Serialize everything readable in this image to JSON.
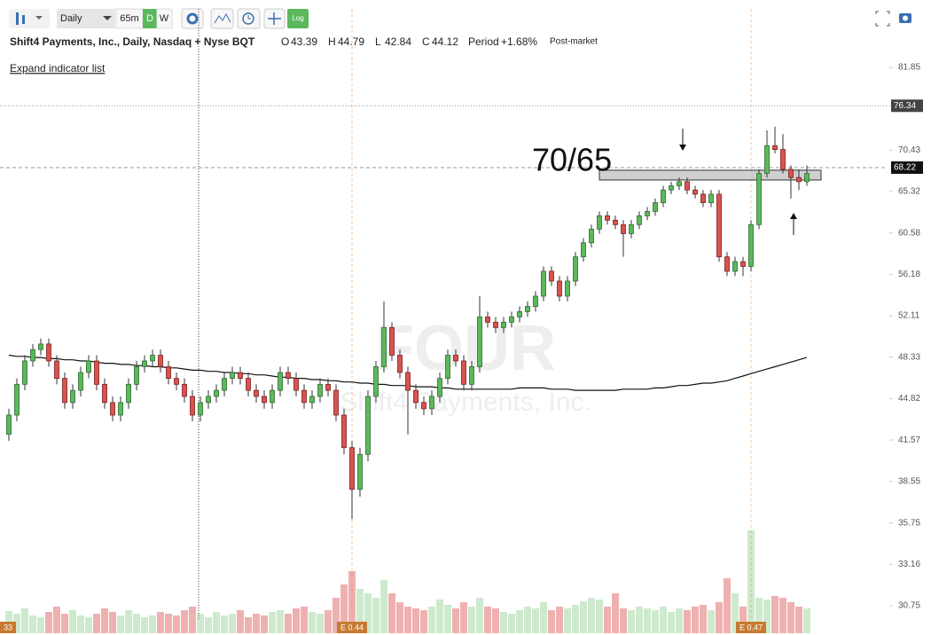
{
  "toolbar": {
    "interval": "Daily",
    "timeframe": "65m",
    "period_buttons": [
      "D",
      "W"
    ],
    "log_button": "Log"
  },
  "chart_data": {
    "type": "candlestick",
    "title": "Shift4 Payments, Inc., Daily, Nasdaq + Nyse BQT",
    "ohlc_legend": [
      {
        "label": "O",
        "value": 43.39
      },
      {
        "label": "H",
        "value": 44.79
      },
      {
        "label": "L",
        "value": 42.84
      },
      {
        "label": "C",
        "value": 44.12
      }
    ],
    "period": {
      "label": "Period",
      "value": 1.68,
      "value_label": "+1.68%"
    },
    "session": "Post-market",
    "expand_link": "Expand indicator list",
    "watermark": {
      "symbol": "FOUR",
      "name": "Shift4 Payments, Inc."
    },
    "log_scale": true,
    "ylim": [
      29.16,
      91.05
    ],
    "yticks": [
      81.85,
      76.34,
      70.43,
      65.32,
      60.58,
      56.18,
      52.11,
      48.33,
      44.82,
      41.57,
      38.55,
      35.75,
      33.16,
      30.75
    ],
    "marker_line": 76.34,
    "last_price": 68.22,
    "up_color": "#5cb85c",
    "down_color": "#d9534f",
    "ohlc": [
      [
        42,
        44,
        41.5,
        43.5
      ],
      [
        43.5,
        46.5,
        43,
        46
      ],
      [
        46,
        48.5,
        45.5,
        48
      ],
      [
        48,
        49.5,
        47.5,
        49
      ],
      [
        49,
        50,
        48.5,
        49.5
      ],
      [
        49.5,
        50,
        47.5,
        48
      ],
      [
        48,
        48.5,
        46,
        46.5
      ],
      [
        46.5,
        47,
        44,
        44.5
      ],
      [
        44.5,
        46,
        44,
        45.5
      ],
      [
        45.5,
        47.5,
        45,
        47
      ],
      [
        47,
        48.5,
        46.5,
        48
      ],
      [
        48,
        48.5,
        45.5,
        46
      ],
      [
        46,
        46.5,
        44,
        44.5
      ],
      [
        44.5,
        45,
        43,
        43.5
      ],
      [
        43.5,
        45,
        43,
        44.5
      ],
      [
        44.5,
        46.5,
        44,
        46
      ],
      [
        46,
        48,
        45.5,
        47.5
      ],
      [
        47.5,
        48.5,
        47,
        48
      ],
      [
        48,
        49,
        47.5,
        48.5
      ],
      [
        48.5,
        49,
        47,
        47.5
      ],
      [
        47.5,
        48,
        46,
        46.5
      ],
      [
        46.5,
        47,
        45.5,
        46
      ],
      [
        46,
        46.5,
        44.5,
        45
      ],
      [
        45,
        45.5,
        43,
        43.5
      ],
      [
        43.5,
        45,
        43,
        44.5
      ],
      [
        44.5,
        45.5,
        44,
        45
      ],
      [
        45,
        46,
        44.5,
        45.5
      ],
      [
        45.5,
        47,
        45,
        46.5
      ],
      [
        46.5,
        47.5,
        46,
        47
      ],
      [
        47,
        47.5,
        46,
        46.5
      ],
      [
        46.5,
        47,
        45,
        45.5
      ],
      [
        45.5,
        46,
        44.5,
        45
      ],
      [
        45,
        45.5,
        44,
        44.5
      ],
      [
        44.5,
        46,
        44,
        45.5
      ],
      [
        45.5,
        47.5,
        45,
        47
      ],
      [
        47,
        47.5,
        46,
        46.5
      ],
      [
        46.5,
        47,
        45,
        45.5
      ],
      [
        45.5,
        46,
        44,
        44.5
      ],
      [
        44.5,
        45.5,
        44,
        45
      ],
      [
        45,
        46.5,
        44.5,
        46
      ],
      [
        46,
        46.5,
        45,
        45.5
      ],
      [
        45.5,
        46,
        43,
        43.5
      ],
      [
        43.5,
        44,
        40.5,
        41
      ],
      [
        41,
        41.5,
        36,
        38
      ],
      [
        38,
        41,
        37.5,
        40.5
      ],
      [
        40.5,
        45.5,
        40,
        45
      ],
      [
        45,
        48,
        44.5,
        47.5
      ],
      [
        47.5,
        53.5,
        47,
        51
      ],
      [
        51,
        51.5,
        48,
        48.5
      ],
      [
        48.5,
        49,
        46.5,
        47
      ],
      [
        47,
        47.5,
        42,
        45.5
      ],
      [
        45.5,
        46,
        44,
        44.5
      ],
      [
        44.5,
        45,
        43.5,
        44
      ],
      [
        44,
        45.5,
        43.5,
        45
      ],
      [
        45,
        47,
        44.5,
        46.5
      ],
      [
        46.5,
        49,
        46,
        48.5
      ],
      [
        48.5,
        49,
        47.5,
        48
      ],
      [
        48,
        48.5,
        45.5,
        46
      ],
      [
        46,
        48,
        45.5,
        47.5
      ],
      [
        47.5,
        54,
        47,
        52
      ],
      [
        52,
        52.5,
        51,
        51.5
      ],
      [
        51.5,
        52,
        50.5,
        51
      ],
      [
        51,
        52,
        50.5,
        51.5
      ],
      [
        51.5,
        52.5,
        51,
        52
      ],
      [
        52,
        53,
        51.5,
        52.5
      ],
      [
        52.5,
        53.5,
        52,
        53
      ],
      [
        53,
        54.5,
        52.5,
        54
      ],
      [
        54,
        57,
        53.5,
        56.5
      ],
      [
        56.5,
        57,
        55,
        55.5
      ],
      [
        55.5,
        56,
        53.5,
        54
      ],
      [
        54,
        56,
        53.5,
        55.5
      ],
      [
        55.5,
        58.5,
        55,
        58
      ],
      [
        58,
        60,
        57.5,
        59.5
      ],
      [
        59.5,
        61.5,
        59,
        61
      ],
      [
        61,
        63,
        60.5,
        62.5
      ],
      [
        62.5,
        63,
        61.5,
        62
      ],
      [
        62,
        62.5,
        61,
        61.5
      ],
      [
        61.5,
        62,
        58,
        60.5
      ],
      [
        60.5,
        62,
        60,
        61.5
      ],
      [
        61.5,
        63,
        61,
        62.5
      ],
      [
        62.5,
        63.5,
        62,
        63
      ],
      [
        63,
        64.5,
        62.5,
        64
      ],
      [
        64,
        66,
        63.5,
        65.5
      ],
      [
        65.5,
        66.5,
        65,
        66
      ],
      [
        66,
        67,
        65.5,
        66.5
      ],
      [
        66.5,
        67,
        65,
        65.5
      ],
      [
        65.5,
        66,
        64.5,
        65
      ],
      [
        65,
        65.5,
        63.5,
        64
      ],
      [
        64,
        65.5,
        63.5,
        65
      ],
      [
        65,
        65.5,
        57.5,
        58
      ],
      [
        58,
        58.5,
        56,
        56.5
      ],
      [
        56.5,
        58,
        56,
        57.5
      ],
      [
        57.5,
        58,
        56,
        57
      ],
      [
        57,
        62,
        56.5,
        61.5
      ],
      [
        61.5,
        68,
        61,
        67.5
      ],
      [
        67.5,
        73,
        67,
        71
      ],
      [
        71,
        73.5,
        70,
        70.5
      ],
      [
        70.5,
        72.5,
        67.5,
        68
      ],
      [
        68,
        68.5,
        64.5,
        67
      ],
      [
        67,
        68,
        65.5,
        66.5
      ],
      [
        66.5,
        68.5,
        66,
        67.5
      ]
    ],
    "ma": {
      "color": "#111111",
      "values": [
        48.5,
        48.4,
        48.4,
        48.3,
        48.3,
        48.2,
        48.2,
        48.1,
        48.1,
        48.0,
        48.0,
        47.9,
        47.8,
        47.8,
        47.7,
        47.7,
        47.6,
        47.6,
        47.5,
        47.5,
        47.4,
        47.4,
        47.3,
        47.2,
        47.2,
        47.1,
        47.1,
        47.0,
        47.0,
        46.9,
        46.9,
        46.8,
        46.8,
        46.7,
        46.6,
        46.6,
        46.5,
        46.5,
        46.4,
        46.4,
        46.3,
        46.3,
        46.2,
        46.2,
        46.1,
        46.1,
        46.0,
        46.0,
        45.9,
        45.9,
        45.9,
        45.8,
        45.8,
        45.8,
        45.7,
        45.7,
        45.6,
        45.6,
        45.6,
        45.6,
        45.6,
        45.6,
        45.6,
        45.6,
        45.7,
        45.7,
        45.7,
        45.7,
        45.6,
        45.6,
        45.6,
        45.5,
        45.5,
        45.5,
        45.5,
        45.5,
        45.5,
        45.6,
        45.6,
        45.6,
        45.6,
        45.7,
        45.7,
        45.8,
        45.9,
        45.9,
        46.0,
        46.1,
        46.1,
        46.2,
        46.3,
        46.5,
        46.7,
        46.9,
        47.1,
        47.3,
        47.5,
        47.7,
        47.9,
        48.1,
        48.3
      ]
    },
    "volume": {
      "lim": [
        0,
        120
      ],
      "values": [
        25,
        22,
        28,
        20,
        18,
        24,
        30,
        22,
        26,
        20,
        18,
        22,
        28,
        24,
        20,
        26,
        22,
        18,
        20,
        24,
        22,
        20,
        26,
        30,
        22,
        18,
        24,
        20,
        22,
        26,
        18,
        22,
        20,
        24,
        26,
        22,
        28,
        30,
        24,
        22,
        26,
        40,
        55,
        70,
        50,
        45,
        40,
        60,
        45,
        35,
        30,
        28,
        26,
        30,
        38,
        32,
        28,
        35,
        30,
        40,
        30,
        28,
        24,
        22,
        26,
        30,
        28,
        35,
        26,
        30,
        28,
        32,
        36,
        40,
        38,
        30,
        45,
        28,
        26,
        30,
        28,
        26,
        30,
        24,
        28,
        26,
        30,
        32,
        26,
        35,
        62,
        45,
        30,
        116,
        40,
        38,
        42,
        40,
        35,
        30,
        28
      ]
    },
    "annotation": {
      "text": "70/65",
      "zone": [
        66.7,
        67.9
      ]
    },
    "earnings": [
      "E 0.44",
      "E 0.47"
    ],
    "crosshair_label": "33"
  }
}
